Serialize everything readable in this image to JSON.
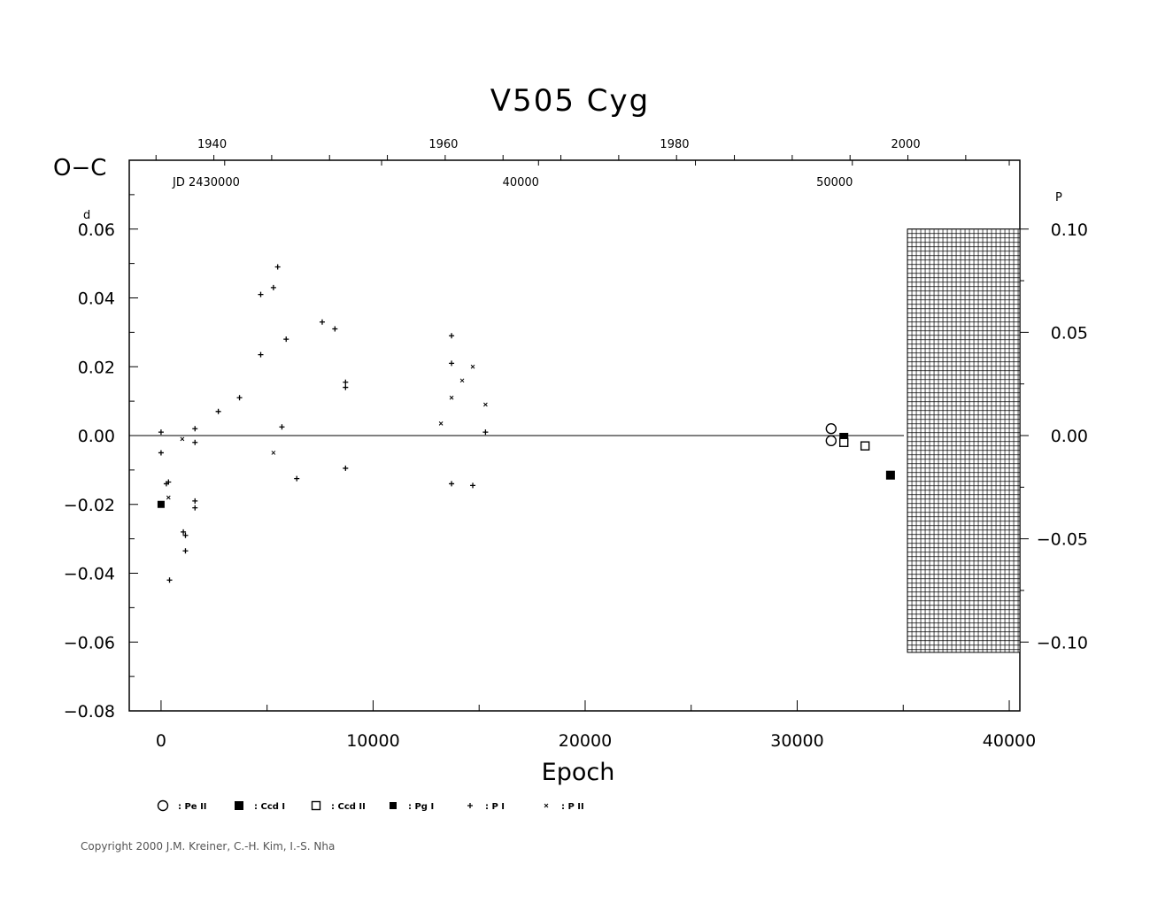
{
  "chart_data": {
    "type": "scatter",
    "title": "V505  Cyg",
    "ylabel": "O−C",
    "ylabel_unit": "d",
    "xlabel": "Epoch",
    "xlim": [
      -1500,
      40500
    ],
    "ylim": [
      -0.08,
      0.08
    ],
    "x_ticks": [
      0,
      10000,
      20000,
      30000,
      40000
    ],
    "x_tick_labels": [
      "0",
      "10000",
      "20000",
      "30000",
      "40000"
    ],
    "y_ticks": [
      -0.08,
      -0.06,
      -0.04,
      -0.02,
      0.0,
      0.02,
      0.04,
      0.06
    ],
    "y_tick_labels": [
      "−0.08",
      "−0.06",
      "−0.04",
      "−0.02",
      "0.00",
      "0.02",
      "0.04",
      "0.06"
    ],
    "y_tick_label_06": "0.06",
    "right_axis": {
      "unit": "P",
      "ticks": [
        0.1,
        0.05,
        0.0,
        -0.05,
        -0.1
      ],
      "tick_labels": [
        "0.10",
        "0.05",
        "0.00",
        "−0.05",
        "−0.10"
      ],
      "period_days": 0.6
    },
    "top_axis_years": {
      "labels": [
        "1940",
        "1960",
        "1980",
        "2000"
      ],
      "epochs": [
        2490,
        13400,
        24300,
        35200
      ]
    },
    "top_axis_jd": {
      "prefix": "JD  2430000",
      "labels": [
        "40000",
        "50000"
      ],
      "epochs": [
        17800,
        32600
      ]
    },
    "future_region_start_epoch": 35200,
    "series": [
      {
        "name": "Pe II",
        "symbol": "open-circle",
        "points": [
          [
            31600,
            0.002
          ],
          [
            31600,
            -0.0015
          ]
        ]
      },
      {
        "name": "Ccd I",
        "symbol": "filled-square",
        "points": [
          [
            32200,
            -0.0005
          ],
          [
            34400,
            -0.0115
          ]
        ]
      },
      {
        "name": "Ccd II",
        "symbol": "open-square",
        "points": [
          [
            32200,
            -0.002
          ],
          [
            33200,
            -0.003
          ]
        ]
      },
      {
        "name": "Pg I",
        "symbol": "small-filled-square",
        "points": [
          [
            0,
            -0.02
          ]
        ]
      },
      {
        "name": "P I",
        "symbol": "plus",
        "points": [
          [
            0,
            0.001
          ],
          [
            0,
            -0.005
          ],
          [
            250,
            -0.014
          ],
          [
            350,
            -0.0135
          ],
          [
            400,
            -0.042
          ],
          [
            1050,
            -0.028
          ],
          [
            1150,
            -0.029
          ],
          [
            1150,
            -0.0335
          ],
          [
            1600,
            0.002
          ],
          [
            1600,
            -0.002
          ],
          [
            1600,
            -0.019
          ],
          [
            1600,
            -0.021
          ],
          [
            2700,
            0.007
          ],
          [
            3700,
            0.011
          ],
          [
            4700,
            0.041
          ],
          [
            4700,
            0.0235
          ],
          [
            5300,
            0.043
          ],
          [
            5500,
            0.049
          ],
          [
            5700,
            0.0025
          ],
          [
            5900,
            0.028
          ],
          [
            6400,
            -0.0125
          ],
          [
            7600,
            0.033
          ],
          [
            8200,
            0.031
          ],
          [
            8700,
            0.0155
          ],
          [
            8700,
            0.014
          ],
          [
            8700,
            -0.0095
          ],
          [
            13700,
            0.029
          ],
          [
            13700,
            0.021
          ],
          [
            13700,
            -0.014
          ],
          [
            14700,
            -0.0145
          ],
          [
            15300,
            0.001
          ]
        ]
      },
      {
        "name": "P II",
        "symbol": "x",
        "points": [
          [
            350,
            -0.018
          ],
          [
            1000,
            -0.001
          ],
          [
            5300,
            -0.005
          ],
          [
            13200,
            0.0035
          ],
          [
            13700,
            0.011
          ],
          [
            14200,
            0.016
          ],
          [
            14700,
            0.02
          ],
          [
            15300,
            0.009
          ]
        ]
      }
    ],
    "legend_labels": [
      ": Pe II",
      ": Ccd I",
      ": Ccd II",
      ": Pg I",
      ": P I",
      ": P II"
    ]
  },
  "copyright": "Copyright 2000 J.M. Kreiner, C.-H. Kim, I.-S. Nha"
}
